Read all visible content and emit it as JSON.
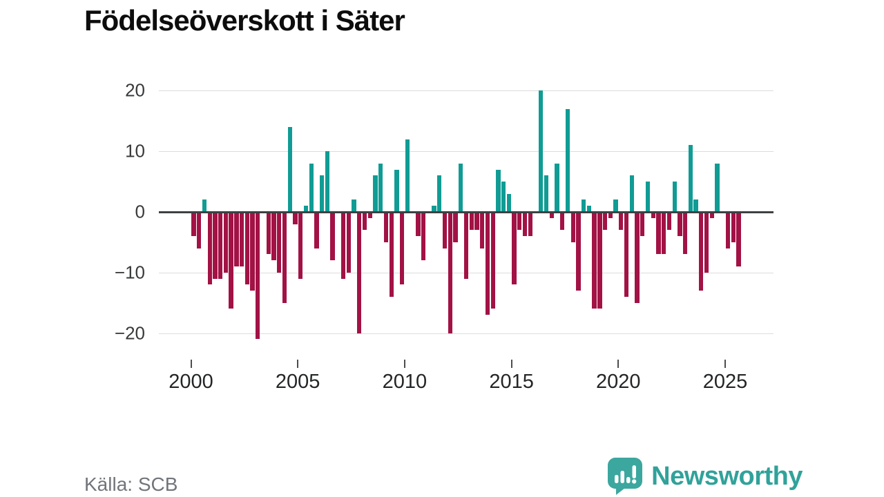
{
  "title": "Födelseöverskott i Säter",
  "source": "Källa: SCB",
  "logo": {
    "text": "Newsworthy"
  },
  "colors": {
    "positive": "#109c94",
    "negative": "#a21245",
    "zero_line": "#3d4043",
    "gridline": "#dcdcdc",
    "logo_teal": "#3ba79f"
  },
  "chart_data": {
    "type": "bar",
    "title": "Födelseöverskott i Säter",
    "frequency": "quarterly",
    "x_start": {
      "year": 2000,
      "quarter": 1
    },
    "x_end": {
      "year": 2025,
      "quarter": 3
    },
    "x_tick_labels": [
      "2000",
      "2005",
      "2010",
      "2015",
      "2020",
      "2025"
    ],
    "y_ticks": [
      20,
      10,
      0,
      -10,
      -20
    ],
    "y_tick_labels": [
      "20",
      "10",
      "0",
      "−10",
      "−20"
    ],
    "ylim": [
      -22.5,
      21
    ],
    "grid": true,
    "legend": "none",
    "series": [
      {
        "name": "Födelseöverskott",
        "years": [
          {
            "year": 2000,
            "values": [
              -4,
              -6,
              2,
              -12
            ]
          },
          {
            "year": 2001,
            "values": [
              -11,
              -11,
              -10,
              -16
            ]
          },
          {
            "year": 2002,
            "values": [
              -9,
              -9,
              -12,
              -13
            ]
          },
          {
            "year": 2003,
            "values": [
              -21,
              0,
              -7,
              -8
            ]
          },
          {
            "year": 2004,
            "values": [
              -10,
              -15,
              14,
              -2
            ]
          },
          {
            "year": 2005,
            "values": [
              -11,
              1,
              8,
              -6
            ]
          },
          {
            "year": 2006,
            "values": [
              6,
              10,
              -8,
              0
            ]
          },
          {
            "year": 2007,
            "values": [
              -11,
              -10,
              2,
              -20
            ]
          },
          {
            "year": 2008,
            "values": [
              -3,
              -1,
              6,
              8
            ]
          },
          {
            "year": 2009,
            "values": [
              -5,
              -14,
              7,
              -12
            ]
          },
          {
            "year": 2010,
            "values": [
              12,
              0,
              -4,
              -8
            ]
          },
          {
            "year": 2011,
            "values": [
              0,
              1,
              6,
              -6
            ]
          },
          {
            "year": 2012,
            "values": [
              -20,
              -5,
              8,
              -11
            ]
          },
          {
            "year": 2013,
            "values": [
              -3,
              -3,
              -6,
              -17
            ]
          },
          {
            "year": 2014,
            "values": [
              -16,
              7,
              5,
              3
            ]
          },
          {
            "year": 2015,
            "values": [
              -12,
              -3,
              -4,
              -4
            ]
          },
          {
            "year": 2016,
            "values": [
              0,
              20,
              6,
              -1
            ]
          },
          {
            "year": 2017,
            "values": [
              8,
              -3,
              17,
              -5
            ]
          },
          {
            "year": 2018,
            "values": [
              -13,
              2,
              1,
              -16
            ]
          },
          {
            "year": 2019,
            "values": [
              -16,
              -3,
              -1,
              2
            ]
          },
          {
            "year": 2020,
            "values": [
              -3,
              -14,
              6,
              -15
            ]
          },
          {
            "year": 2021,
            "values": [
              -4,
              5,
              -1,
              -7
            ]
          },
          {
            "year": 2022,
            "values": [
              -7,
              -3,
              5,
              -4
            ]
          },
          {
            "year": 2023,
            "values": [
              -7,
              11,
              2,
              -13
            ]
          },
          {
            "year": 2024,
            "values": [
              -10,
              -1,
              8,
              0
            ]
          },
          {
            "year": 2025,
            "values": [
              -6,
              -5,
              -9
            ]
          }
        ]
      }
    ]
  }
}
